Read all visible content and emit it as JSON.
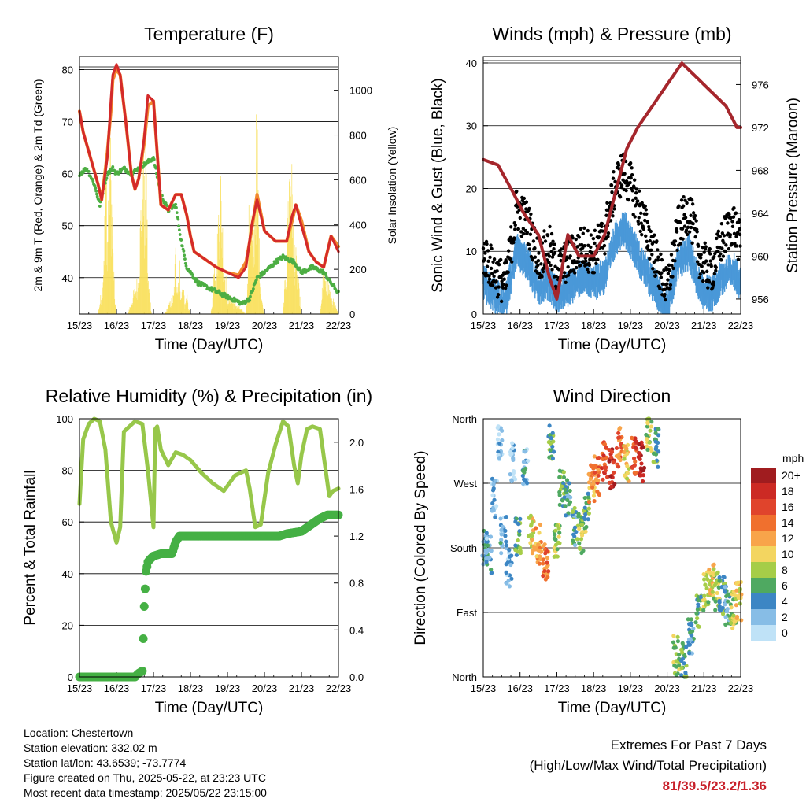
{
  "chart_data": [
    {
      "id": "temperature",
      "type": "line",
      "title": "Temperature (F)",
      "xlabel": "Time (Day/UTC)",
      "ylabel": "2m & 9m T (Red, Orange) & 2m Td (Green)",
      "y2label": "Solar Insolation (Yellow)",
      "xticks": [
        "15/23",
        "16/23",
        "17/23",
        "18/23",
        "19/23",
        "20/23",
        "21/23",
        "22/23"
      ],
      "yticks": [
        40,
        50,
        60,
        70,
        80
      ],
      "y2ticks": [
        0,
        200,
        400,
        600,
        800,
        1000
      ],
      "ylim": [
        33,
        82.5
      ],
      "y2lim": [
        0,
        1150
      ],
      "grid": true,
      "colors": {
        "t2m": "#d42a2a",
        "t9m": "#f2892e",
        "td": "#4cae43",
        "solar": "#f9e05c"
      },
      "series": [
        {
          "key": "t9m",
          "x": [
            0,
            0.1,
            0.3,
            0.5,
            0.6,
            0.75,
            0.85,
            0.9,
            1.0,
            1.1,
            1.25,
            1.4,
            1.5,
            1.6,
            1.75,
            1.85,
            2.0,
            2.2,
            2.4,
            2.6,
            2.75,
            2.9,
            3.0,
            3.1,
            3.3,
            3.5,
            3.7,
            4.0,
            4.3,
            4.5,
            4.65,
            4.8,
            5.0,
            5.3,
            5.6,
            5.75,
            5.85,
            6.0,
            6.2,
            6.4,
            6.6,
            6.8,
            7.0
          ],
          "y": [
            72,
            68,
            63,
            58,
            55,
            64,
            72,
            78,
            80,
            79,
            70,
            60,
            57,
            59,
            66,
            73,
            74,
            54,
            53,
            56,
            56,
            52,
            48,
            45,
            44,
            43,
            42,
            41,
            40.5,
            43,
            49,
            56,
            49,
            47,
            47,
            51,
            54,
            51,
            45,
            43,
            42,
            48,
            46
          ]
        },
        {
          "key": "t2m",
          "x": [
            0,
            0.1,
            0.3,
            0.5,
            0.6,
            0.75,
            0.85,
            0.9,
            1.0,
            1.1,
            1.25,
            1.4,
            1.5,
            1.6,
            1.75,
            1.85,
            2.0,
            2.2,
            2.4,
            2.6,
            2.75,
            2.9,
            3.0,
            3.1,
            3.3,
            3.5,
            3.7,
            4.0,
            4.3,
            4.5,
            4.65,
            4.8,
            5.0,
            5.3,
            5.6,
            5.75,
            5.85,
            6.0,
            6.2,
            6.4,
            6.6,
            6.8,
            7.0
          ],
          "y": [
            72,
            68,
            63,
            58,
            55,
            63,
            74,
            79,
            81,
            79,
            70,
            60,
            57,
            59,
            67,
            75,
            74,
            54,
            53,
            56,
            56,
            52,
            48,
            45,
            44,
            43,
            42,
            41,
            40,
            42,
            50,
            55,
            49,
            47,
            47,
            52,
            54,
            50,
            45,
            43,
            42,
            48,
            45
          ]
        },
        {
          "key": "td",
          "x": [
            0,
            0.2,
            0.4,
            0.55,
            0.75,
            0.9,
            1.0,
            1.2,
            1.4,
            1.6,
            1.8,
            2.0,
            2.2,
            2.4,
            2.6,
            2.75,
            2.9,
            3.0,
            3.2,
            3.5,
            3.8,
            4.1,
            4.4,
            4.6,
            4.8,
            5.0,
            5.3,
            5.5,
            5.8,
            6.0,
            6.3,
            6.6,
            6.8,
            7.0
          ],
          "y": [
            60,
            61,
            58,
            54,
            60,
            61,
            60,
            61,
            60,
            61,
            62,
            63,
            56,
            53,
            54,
            47,
            42,
            41,
            39,
            38,
            37,
            36,
            35,
            36,
            40,
            41,
            43,
            44,
            43,
            41,
            42,
            41,
            39,
            37
          ]
        },
        {
          "key": "solar",
          "x": [
            0,
            0.5,
            0.62,
            0.68,
            0.72,
            0.76,
            0.8,
            0.85,
            0.9,
            0.95,
            1.0,
            1.3,
            1.6,
            1.68,
            1.72,
            1.76,
            1.8,
            1.85,
            1.9,
            1.95,
            2.0,
            2.3,
            2.55,
            2.6,
            2.65,
            2.7,
            2.75,
            2.8,
            2.85,
            2.9,
            2.95,
            3.0,
            3.55,
            3.6,
            3.65,
            3.7,
            3.8,
            3.9,
            4.0,
            4.5,
            4.55,
            4.6,
            4.7,
            4.8,
            4.85,
            4.9,
            4.95,
            5.0,
            5.5,
            5.55,
            5.6,
            5.65,
            5.7,
            5.8,
            5.9,
            6.0,
            6.5,
            6.55,
            6.6,
            6.65,
            6.7,
            6.8,
            6.9,
            7.0
          ],
          "y": [
            0,
            0,
            150,
            500,
            900,
            300,
            1000,
            800,
            400,
            100,
            0,
            0,
            200,
            700,
            1000,
            500,
            900,
            200,
            100,
            0,
            0,
            0,
            100,
            350,
            150,
            300,
            80,
            200,
            50,
            100,
            30,
            0,
            0,
            100,
            400,
            200,
            800,
            300,
            100,
            0,
            200,
            700,
            300,
            1070,
            400,
            150,
            50,
            0,
            0,
            150,
            300,
            700,
            900,
            400,
            200,
            0,
            0,
            100,
            250,
            150,
            200,
            100,
            50,
            0
          ]
        }
      ]
    },
    {
      "id": "winds",
      "type": "scatter",
      "title": "Winds (mph) & Pressure (mb)",
      "xlabel": "Time (Day/UTC)",
      "ylabel": "Sonic Wind & Gust (Blue, Black)",
      "y2label": "Station Pressure (Maroon)",
      "xticks": [
        "15/23",
        "16/23",
        "17/23",
        "18/23",
        "19/23",
        "20/23",
        "21/23",
        "22/23"
      ],
      "yticks": [
        0,
        10,
        20,
        30,
        40
      ],
      "y2ticks": [
        956,
        960,
        964,
        968,
        972,
        976
      ],
      "ylim": [
        0,
        41
      ],
      "y2lim": [
        954.6,
        978.6
      ],
      "grid": true,
      "colors": {
        "wind": "#4a98d8",
        "gust": "#000000",
        "pressure": "#a5262c"
      },
      "series": [
        {
          "key": "wind_mean",
          "x": [
            0,
            0.3,
            0.6,
            0.9,
            1.2,
            1.5,
            1.8,
            2.0,
            2.3,
            2.7,
            3.0,
            3.3,
            3.6,
            3.8,
            4.0,
            4.3,
            4.6,
            4.8,
            5.0,
            5.3,
            5.6,
            5.9,
            6.2,
            6.5,
            6.8,
            7.0
          ],
          "y": [
            5,
            3,
            2,
            10,
            8,
            4,
            5,
            3,
            4,
            6,
            5,
            6,
            12,
            14,
            12,
            8,
            5,
            3,
            1,
            8,
            10,
            4,
            3,
            6,
            7,
            5
          ]
        },
        {
          "key": "gust_mean",
          "x": [
            0,
            0.3,
            0.6,
            0.9,
            1.2,
            1.5,
            1.8,
            2.0,
            2.3,
            2.7,
            3.0,
            3.3,
            3.6,
            3.8,
            4.0,
            4.3,
            4.6,
            4.8,
            5.0,
            5.3,
            5.6,
            5.9,
            6.2,
            6.5,
            6.8,
            7.0
          ],
          "y": [
            9,
            6,
            4,
            16,
            14,
            8,
            10,
            6,
            8,
            10,
            9,
            12,
            20,
            22,
            20,
            15,
            10,
            6,
            3,
            13,
            16,
            8,
            6,
            11,
            14,
            10
          ]
        },
        {
          "key": "pressure",
          "x": [
            0,
            0.4,
            0.8,
            1.1,
            1.5,
            1.8,
            2.0,
            2.3,
            2.6,
            3.0,
            3.3,
            3.6,
            3.9,
            4.2,
            4.6,
            5.0,
            5.4,
            5.7,
            6.0,
            6.3,
            6.6,
            6.9,
            7.0
          ],
          "y": [
            969,
            968.5,
            966,
            964,
            962,
            958,
            956,
            962,
            960,
            960,
            962,
            966,
            970,
            972,
            974,
            976,
            978,
            977,
            976,
            975,
            974,
            972,
            972
          ]
        }
      ]
    },
    {
      "id": "humidity",
      "type": "line",
      "title": "Relative Humidity (%) & Precipitation (in)",
      "xlabel": "Time (Day/UTC)",
      "ylabel": "Percent & Total Rainfall",
      "xticks": [
        "15/23",
        "16/23",
        "17/23",
        "18/23",
        "19/23",
        "20/23",
        "21/23",
        "22/23"
      ],
      "yticks": [
        0,
        20,
        40,
        60,
        80,
        100
      ],
      "y2ticks": [
        "0.0",
        "0.4",
        "0.8",
        "1.2",
        "1.6",
        "2.0"
      ],
      "ylim": [
        0,
        100
      ],
      "y2lim": [
        0,
        2.2
      ],
      "grid": true,
      "colors": {
        "rh": "#97c74a",
        "precip": "#45b044"
      },
      "series": [
        {
          "key": "rh",
          "x": [
            0,
            0.1,
            0.25,
            0.4,
            0.55,
            0.7,
            0.85,
            1.0,
            1.1,
            1.2,
            1.35,
            1.5,
            1.7,
            1.85,
            1.95,
            2.0,
            2.05,
            2.1,
            2.2,
            2.4,
            2.6,
            2.8,
            3.0,
            3.3,
            3.6,
            3.9,
            4.2,
            4.5,
            4.6,
            4.75,
            4.9,
            5.1,
            5.3,
            5.5,
            5.65,
            5.8,
            5.9,
            6.0,
            6.15,
            6.3,
            6.5,
            6.75,
            6.85,
            7.0
          ],
          "y": [
            67,
            92,
            98,
            100,
            99,
            88,
            60,
            52,
            58,
            95,
            97,
            99,
            98,
            80,
            65,
            58,
            96,
            97,
            88,
            82,
            87,
            86,
            84,
            79,
            75,
            72,
            78,
            80,
            73,
            58,
            59,
            79,
            90,
            99,
            97,
            82,
            75,
            86,
            96,
            97,
            96,
            70,
            72,
            73
          ]
        },
        {
          "key": "precip",
          "x": [
            0,
            1.5,
            1.6,
            1.7,
            1.75,
            1.8,
            1.85,
            1.9,
            2.0,
            2.2,
            2.5,
            2.6,
            2.7,
            3.0,
            3.5,
            4.0,
            4.5,
            5.0,
            5.4,
            5.6,
            6.0,
            6.5,
            6.7,
            7.0
          ],
          "y": [
            0,
            0,
            0.03,
            0.05,
            0.6,
            0.9,
            0.98,
            1.0,
            1.03,
            1.05,
            1.05,
            1.15,
            1.2,
            1.2,
            1.2,
            1.2,
            1.2,
            1.2,
            1.2,
            1.22,
            1.24,
            1.35,
            1.38,
            1.38
          ]
        }
      ]
    },
    {
      "id": "direction",
      "type": "scatter",
      "title": "Wind Direction",
      "xlabel": "Time (Day/UTC)",
      "ylabel": "Direction (Colored By Speed)",
      "xticks": [
        "15/23",
        "16/23",
        "17/23",
        "18/23",
        "19/23",
        "20/23",
        "21/23",
        "22/23"
      ],
      "yticks": [
        "North",
        "East",
        "South",
        "West",
        "North"
      ],
      "ylim": [
        0,
        360
      ],
      "grid": true,
      "legend": {
        "title": "mph",
        "labels": [
          "20+",
          "18",
          "16",
          "14",
          "12",
          "10",
          "8",
          "6",
          "4",
          "2",
          "0"
        ],
        "colors": [
          "#a01c1f",
          "#cc2a24",
          "#e0442c",
          "#f0702e",
          "#f8a44a",
          "#f3d560",
          "#a6cd48",
          "#4fa961",
          "#3c86c4",
          "#87bde6",
          "#bfe2f7"
        ]
      },
      "series": [
        {
          "key": "dir_clusters",
          "x": [
            0.05,
            0.15,
            0.3,
            0.45,
            0.55,
            0.7,
            0.8,
            0.95,
            1.15,
            1.3,
            1.5,
            1.7,
            1.85,
            2.0,
            2.15,
            2.3,
            2.5,
            2.65,
            2.8,
            2.95,
            3.1,
            3.3,
            3.5,
            3.7,
            3.9,
            4.1,
            4.3,
            4.5,
            4.7,
            5.25,
            5.45,
            5.65,
            5.85,
            6.05,
            6.2,
            6.35,
            6.5,
            6.65,
            6.8,
            6.95
          ],
          "y": [
            180,
            170,
            250,
            330,
            200,
            150,
            300,
            195,
            290,
            200,
            185,
            160,
            330,
            190,
            260,
            250,
            210,
            200,
            230,
            270,
            280,
            300,
            290,
            320,
            300,
            310,
            300,
            340,
            320,
            30,
            20,
            60,
            90,
            120,
            130,
            120,
            115,
            100,
            95,
            105
          ],
          "speed": [
            4,
            3,
            2,
            1,
            3,
            2,
            1,
            6,
            3,
            10,
            12,
            14,
            6,
            8,
            6,
            4,
            5,
            8,
            7,
            12,
            14,
            16,
            18,
            14,
            10,
            16,
            20,
            8,
            6,
            8,
            6,
            4,
            6,
            8,
            10,
            8,
            6,
            4,
            8,
            10
          ]
        }
      ]
    }
  ],
  "footer": {
    "location": "Location: Chestertown",
    "elevation": "Station elevation: 332.02 m",
    "latlon": "Station lat/lon: 43.6539; -73.7774",
    "created": "Figure created on Thu, 2025-05-22, at 23:23 UTC",
    "recent": "Most recent data timestamp: 2025/05/22 23:15:00",
    "extremes_title": "Extremes For Past 7 Days",
    "extremes_subtitle": "(High/Low/Max Wind/Total Precipitation)",
    "extremes_values": "81/39.5/23.2/1.36"
  }
}
